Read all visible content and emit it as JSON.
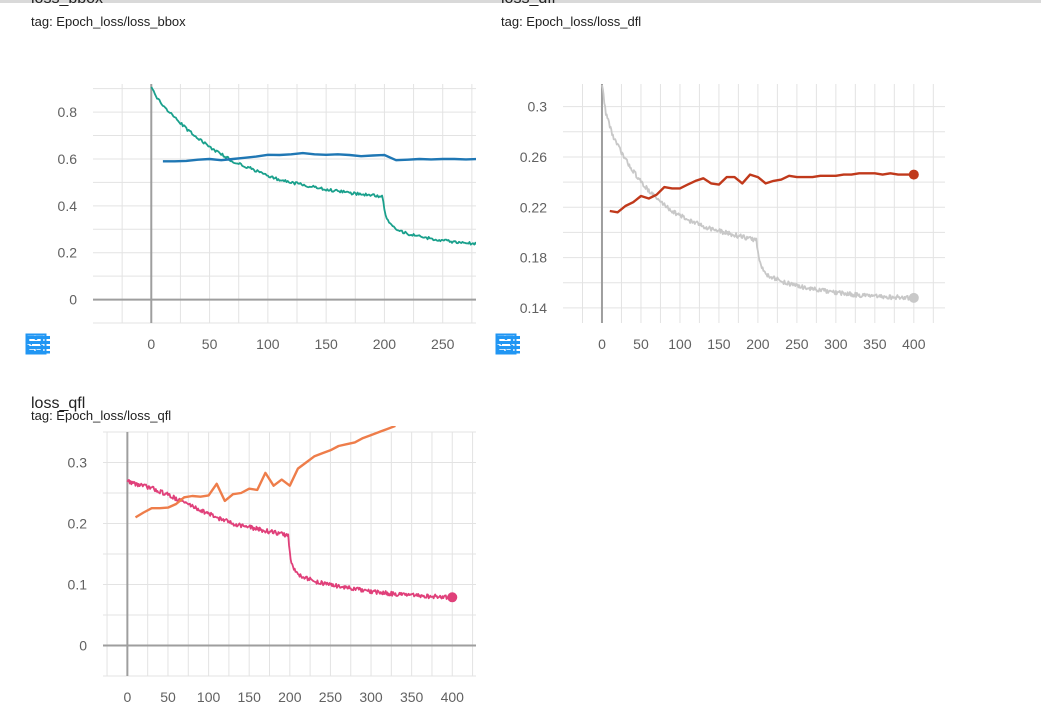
{
  "colors": {
    "bbox_smoothed": "#1aa08c",
    "bbox_raw": "#1f77b4",
    "dfl_smoothed": "#c8c8c8",
    "dfl_raw": "#c0391b",
    "qfl_smoothed": "#e0407a",
    "qfl_raw": "#ee7d4a",
    "toolbar_icon": "#2196f3"
  },
  "toolbar": {
    "icons": [
      "fullscreen-icon",
      "toggle-log-scale-icon",
      "fit-domain-icon"
    ]
  },
  "chart_data": [
    {
      "id": "bbox",
      "type": "line",
      "title": "loss_bbox",
      "tag": "tag: Epoch_loss/loss_bbox",
      "xlim": [
        -50,
        300
      ],
      "ylim": [
        -0.1,
        0.92
      ],
      "x_ticks": [
        0,
        50,
        100,
        150,
        200,
        250
      ],
      "y_ticks": [
        0,
        0.2,
        0.4,
        0.6,
        0.8
      ],
      "y_tick_labels": [
        "0",
        "0.2",
        "0.4",
        "0.6",
        "0.8"
      ],
      "grid": true,
      "series": [
        {
          "color_key": "bbox_smoothed",
          "noise": 0.006,
          "x": [
            0,
            5,
            15,
            30,
            50,
            70,
            90,
            110,
            130,
            150,
            170,
            190,
            198,
            201,
            205,
            210,
            220,
            240,
            260,
            280,
            300
          ],
          "y": [
            0.91,
            0.86,
            0.8,
            0.73,
            0.65,
            0.59,
            0.55,
            0.51,
            0.49,
            0.47,
            0.455,
            0.445,
            0.44,
            0.36,
            0.32,
            0.3,
            0.28,
            0.26,
            0.245,
            0.237,
            0.232
          ]
        },
        {
          "color_key": "bbox_raw",
          "noise": 0,
          "x": [
            10,
            20,
            30,
            40,
            50,
            60,
            70,
            80,
            90,
            100,
            110,
            120,
            130,
            140,
            150,
            160,
            170,
            180,
            190,
            200,
            210,
            220,
            230,
            240,
            250,
            260,
            270,
            280,
            290,
            300
          ],
          "y": [
            0.59,
            0.59,
            0.592,
            0.597,
            0.6,
            0.595,
            0.6,
            0.605,
            0.61,
            0.618,
            0.617,
            0.62,
            0.625,
            0.62,
            0.618,
            0.62,
            0.617,
            0.612,
            0.615,
            0.617,
            0.595,
            0.597,
            0.6,
            0.598,
            0.6,
            0.6,
            0.598,
            0.6,
            0.6,
            0.598
          ]
        }
      ]
    },
    {
      "id": "dfl",
      "type": "line",
      "title": "loss_dfl",
      "tag": "tag: Epoch_loss/loss_dfl",
      "xlim": [
        -50,
        440
      ],
      "ylim": [
        0.128,
        0.318
      ],
      "x_ticks": [
        0,
        50,
        100,
        150,
        200,
        250,
        300,
        350,
        400
      ],
      "y_ticks": [
        0.14,
        0.18,
        0.22,
        0.26,
        0.3
      ],
      "y_tick_labels": [
        "0.14",
        "0.18",
        "0.22",
        "0.26",
        "0.3"
      ],
      "grid": true,
      "series": [
        {
          "color_key": "dfl_smoothed",
          "noise": 0.0018,
          "end_marker": true,
          "x": [
            0,
            5,
            15,
            30,
            50,
            70,
            90,
            110,
            130,
            150,
            170,
            190,
            198,
            201,
            205,
            210,
            230,
            260,
            300,
            350,
            400
          ],
          "y": [
            0.318,
            0.295,
            0.275,
            0.258,
            0.24,
            0.227,
            0.217,
            0.21,
            0.205,
            0.201,
            0.198,
            0.195,
            0.194,
            0.18,
            0.172,
            0.167,
            0.161,
            0.156,
            0.152,
            0.149,
            0.148
          ]
        },
        {
          "color_key": "dfl_raw",
          "noise": 0,
          "end_marker": true,
          "x": [
            10,
            20,
            30,
            40,
            50,
            60,
            70,
            80,
            90,
            100,
            110,
            120,
            130,
            140,
            150,
            160,
            170,
            180,
            190,
            200,
            210,
            220,
            230,
            240,
            250,
            260,
            270,
            280,
            290,
            300,
            310,
            320,
            330,
            340,
            350,
            360,
            370,
            380,
            390,
            400
          ],
          "y": [
            0.217,
            0.216,
            0.221,
            0.224,
            0.229,
            0.227,
            0.23,
            0.236,
            0.235,
            0.235,
            0.238,
            0.241,
            0.243,
            0.239,
            0.238,
            0.244,
            0.244,
            0.239,
            0.246,
            0.244,
            0.239,
            0.241,
            0.242,
            0.245,
            0.244,
            0.244,
            0.244,
            0.245,
            0.245,
            0.245,
            0.246,
            0.246,
            0.247,
            0.247,
            0.247,
            0.246,
            0.247,
            0.246,
            0.246,
            0.246
          ]
        }
      ]
    },
    {
      "id": "qfl",
      "type": "line",
      "title": "loss_qfl",
      "tag": "tag: Epoch_loss/loss_qfl",
      "xlim": [
        -30,
        460
      ],
      "ylim": [
        -0.05,
        0.35
      ],
      "x_ticks": [
        0,
        50,
        100,
        150,
        200,
        250,
        300,
        350,
        400
      ],
      "y_ticks": [
        0,
        0.1,
        0.2,
        0.3
      ],
      "y_tick_labels": [
        "0",
        "0.1",
        "0.2",
        "0.3"
      ],
      "grid": true,
      "series": [
        {
          "color_key": "qfl_smoothed",
          "noise": 0.0035,
          "end_marker": true,
          "x": [
            0,
            10,
            30,
            50,
            70,
            90,
            110,
            130,
            150,
            170,
            190,
            198,
            201,
            205,
            210,
            230,
            260,
            300,
            350,
            400
          ],
          "y": [
            0.27,
            0.265,
            0.258,
            0.247,
            0.235,
            0.222,
            0.21,
            0.2,
            0.194,
            0.188,
            0.183,
            0.18,
            0.14,
            0.125,
            0.117,
            0.105,
            0.097,
            0.088,
            0.082,
            0.079
          ]
        },
        {
          "color_key": "qfl_raw",
          "noise": 0,
          "x": [
            10,
            20,
            30,
            40,
            50,
            60,
            70,
            80,
            90,
            100,
            110,
            120,
            130,
            140,
            150,
            160,
            170,
            180,
            190,
            200,
            210,
            220,
            230,
            240,
            250,
            260,
            270,
            280,
            290,
            300,
            310,
            320,
            330
          ],
          "y": [
            0.21,
            0.218,
            0.225,
            0.225,
            0.226,
            0.232,
            0.243,
            0.245,
            0.244,
            0.246,
            0.265,
            0.237,
            0.248,
            0.25,
            0.257,
            0.255,
            0.283,
            0.262,
            0.272,
            0.262,
            0.29,
            0.3,
            0.31,
            0.315,
            0.32,
            0.327,
            0.33,
            0.333,
            0.34,
            0.345,
            0.35,
            0.355,
            0.36
          ]
        }
      ]
    }
  ]
}
